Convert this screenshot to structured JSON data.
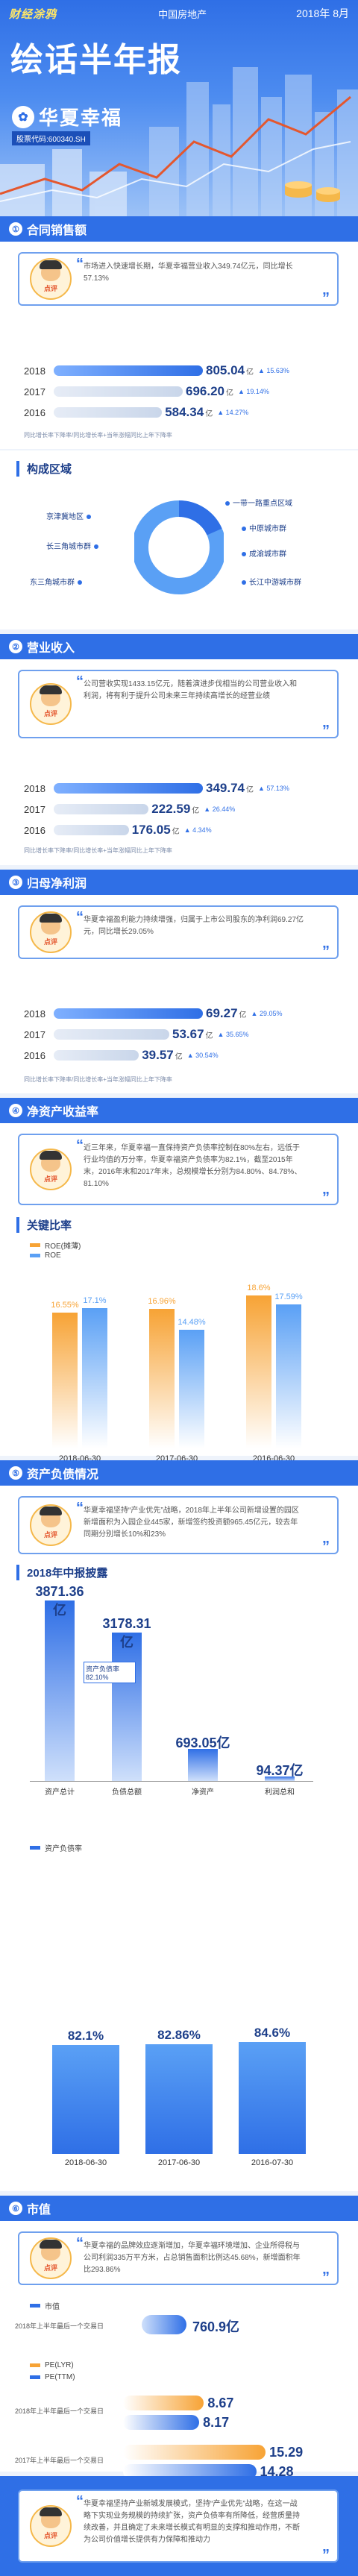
{
  "header": {
    "brand": "财经涂鸦",
    "category": "中国房地产",
    "date": "2018年 8月",
    "title": "绘话半年报",
    "company": "华夏幸福",
    "code": "股票代码:600340.SH"
  },
  "common": {
    "comment_label": "点评",
    "note": "同比增长率=上一年的增长率=比"
  },
  "sections": {
    "sales": {
      "title": "合同销售额",
      "comment": "市场进入快速增长期，华夏幸福营业收入349.74亿元，同比增长57.13%",
      "region_title": "构成区域",
      "note": "同比增长率下降率/同比增长率+当年涨幅同比上年下降率"
    },
    "revenue": {
      "title": "营业收入",
      "comment": "公司营收实现1433.15亿元，随着演进步伐相当的公司营业收入和利润，将有利于提升公司未来三年持续高增长的经营业绩",
      "note": "同比增长率下降率/同比增长率+当年涨幅同比上年下降率"
    },
    "profit": {
      "title": "归母净利润",
      "comment": "华夏幸福盈利能力持续增强，归属于上市公司股东的净利润69.27亿元，同比增长29.05%",
      "note": "同比增长率下降率/同比增长率+当年涨幅同比上年下降率"
    },
    "roe": {
      "title": "净资产收益率",
      "comment": "近三年来，华夏幸福一直保持资产负债率控制在80%左右，远低于行业均值的万分率，华夏幸福资产负债率为82.1%，截至2015年末，2016年末和2017年末，总规模增长分别为84.80%、84.78%、81.10%",
      "sub": "关键比率"
    },
    "debt": {
      "title": "资产负债情况",
      "comment": "华夏幸福坚持“产业优先”战略，2018年上半年公司新增设置的园区新增面积为入园企业445家，新增签约投资额965.45亿元，较去年同期分别增长10%和23%",
      "sub": "2018年中报披露"
    },
    "market": {
      "title": "市值",
      "comment": "华夏幸福的品牌效应逐渐增加，华夏幸福环境增加、企业所得税与公司利润335万平方米，占总销售面积比例达45.68%，新增面积年比293.86%",
      "note2": "市值"
    },
    "footer": {
      "comment": "华夏幸福坚持产业新城发展模式，坚持“产业优先”战略，在这一战略下实现业务规模的持续扩张，资产负债率有所降低，经营质量持续改善，并且确定了未来增长模式有明显的支撑和推动作用，不断为公司价值增长提供有力保障和推动力"
    }
  },
  "chart_data": [
    {
      "type": "bar",
      "orientation": "horizontal",
      "title": "合同销售额",
      "categories": [
        "2018",
        "2017",
        "2016"
      ],
      "series": [
        {
          "values": [
            805.04,
            696.2,
            584.34
          ]
        }
      ],
      "value_suffix": "亿",
      "growth": [
        "15.63%",
        "19.14%",
        "14.27%"
      ]
    },
    {
      "type": "pie",
      "title": "构成区域",
      "labels": [
        "京津冀地区",
        "长三角城市群",
        "东三角城市群",
        "一带一路重点区域",
        "中原城市群",
        "成渝城市群",
        "长江中游城市群"
      ]
    },
    {
      "type": "bar",
      "orientation": "horizontal",
      "title": "营业收入",
      "categories": [
        "2018",
        "2017",
        "2016"
      ],
      "series": [
        {
          "values": [
            349.74,
            222.59,
            176.05
          ]
        }
      ],
      "value_suffix": "亿",
      "growth": [
        "57.13%",
        "26.44%",
        "4.34%"
      ]
    },
    {
      "type": "bar",
      "orientation": "horizontal",
      "title": "归母净利润",
      "categories": [
        "2018",
        "2017",
        "2016"
      ],
      "series": [
        {
          "values": [
            69.27,
            53.67,
            39.57
          ]
        }
      ],
      "value_suffix": "亿",
      "growth": [
        "29.05%",
        "35.65%",
        "30.54%"
      ]
    },
    {
      "type": "bar",
      "title": "关键比率",
      "categories": [
        "2018-06-30",
        "2017-06-30",
        "2016-06-30"
      ],
      "series": [
        {
          "name": "ROE(摊薄)",
          "values": [
            16.55,
            16.96,
            18.6
          ],
          "color": "#f7a335"
        },
        {
          "name": "ROE",
          "values": [
            17.1,
            14.48,
            17.59
          ],
          "color": "#5aa0f5"
        }
      ],
      "ylim": [
        0,
        20
      ],
      "value_suffix": "%"
    },
    {
      "type": "bar",
      "title": "2018年中报披露",
      "categories": [
        "资产总计",
        "负债总额",
        "净资产",
        "利润总和"
      ],
      "values": [
        3871.36,
        3178.31,
        693.05,
        94.37
      ],
      "value_suffix": "亿",
      "annotation": "资产负债率 82.10%",
      "ylim": [
        0,
        4000
      ]
    },
    {
      "type": "bar",
      "title": "资产负债率",
      "categories": [
        "2018-06-30",
        "2017-06-30",
        "2016-07-30"
      ],
      "values": [
        82.1,
        82.86,
        84.6
      ],
      "value_suffix": "%",
      "ylim": [
        0,
        90
      ]
    },
    {
      "type": "bar",
      "orientation": "horizontal",
      "title": "市值",
      "categories": [
        "2018年上半年最后一个交易日"
      ],
      "values": [
        760.9
      ],
      "value_suffix": "亿"
    },
    {
      "type": "bar",
      "orientation": "horizontal",
      "categories": [
        "2018年上半年最后一个交易日",
        "2017年上半年最后一个交易日"
      ],
      "series": [
        {
          "name": "PE(LYR)",
          "values": [
            8.67,
            15.29
          ],
          "color": "#f7a335"
        },
        {
          "name": "PE(TTM)",
          "values": [
            8.17,
            14.28
          ],
          "color": "#2f6fe6"
        }
      ]
    }
  ]
}
